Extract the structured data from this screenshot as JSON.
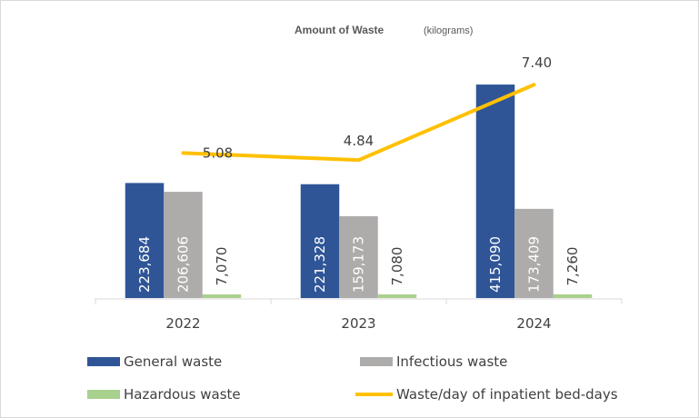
{
  "chart_data": {
    "type": "bar",
    "title": "Amount of Waste",
    "unit_label": "(kilograms)",
    "categories": [
      "2022",
      "2023",
      "2024"
    ],
    "series": [
      {
        "name": "General waste",
        "type": "bar",
        "color": "#2F5597",
        "label_color": "#ffffff",
        "values": [
          223684,
          221328,
          415090
        ],
        "labels": [
          "223,684",
          "221,328",
          "415,090"
        ]
      },
      {
        "name": "Infectious waste",
        "type": "bar",
        "color": "#AEABAB",
        "label_color": "#ffffff",
        "values": [
          206606,
          159173,
          173409
        ],
        "labels": [
          "206,606",
          "159,173",
          "173,409"
        ]
      },
      {
        "name": "Hazardous waste",
        "type": "bar",
        "color": "#A9D18E",
        "label_color": "#404040",
        "values": [
          7070,
          7080,
          7260
        ],
        "labels": [
          "7,070",
          "7,080",
          "7,260"
        ]
      },
      {
        "name": "Waste/day of inpatient bed-days",
        "type": "line",
        "axis": "secondary",
        "color": "#FFC000",
        "values": [
          5.08,
          4.84,
          7.4
        ],
        "labels": [
          "5.08",
          "4.84",
          "7.40"
        ]
      }
    ],
    "xlabel": "",
    "ylabel": "",
    "grid": false,
    "legend_position": "bottom"
  }
}
